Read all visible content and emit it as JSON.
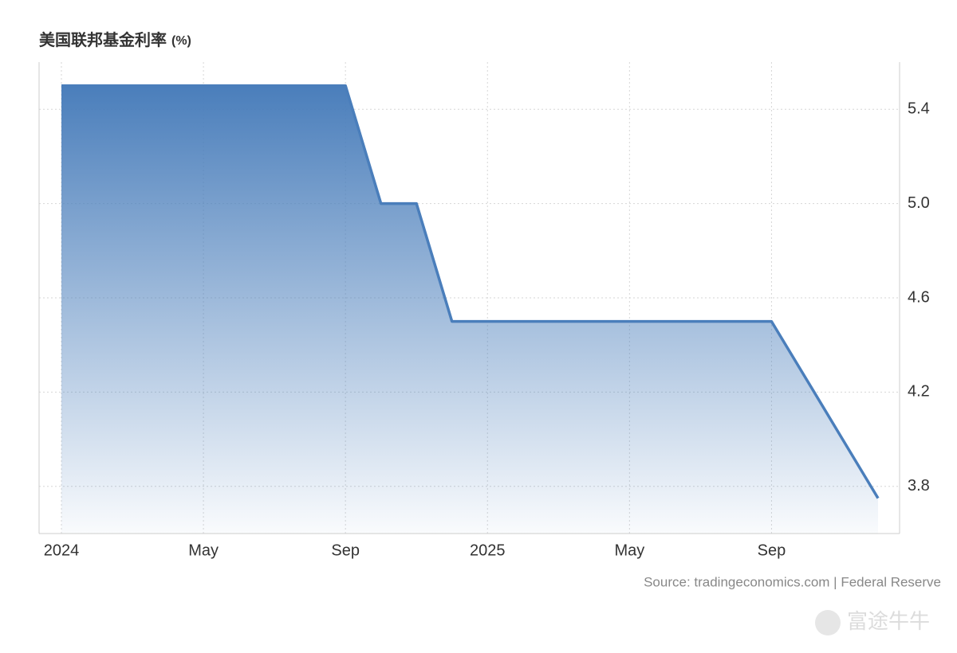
{
  "chart_data": {
    "type": "area",
    "title": "美国联邦基金利率",
    "title_unit": "(%)",
    "source": "Source: tradingeconomics.com | Federal Reserve",
    "watermark": "富途牛牛",
    "x": [
      "2024-01",
      "2024-02",
      "2024-03",
      "2024-04",
      "2024-05",
      "2024-06",
      "2024-07",
      "2024-08",
      "2024-09",
      "2024-10",
      "2024-11",
      "2024-12",
      "2025-01",
      "2025-02",
      "2025-03",
      "2025-04",
      "2025-05",
      "2025-06",
      "2025-07",
      "2025-08",
      "2025-09",
      "2025-10",
      "2025-11",
      "2025-12"
    ],
    "series": [
      {
        "color": "#4a7ebb",
        "values": [
          5.5,
          5.5,
          5.5,
          5.5,
          5.5,
          5.5,
          5.5,
          5.5,
          5.5,
          5.0,
          5.0,
          4.5,
          4.5,
          4.5,
          4.5,
          4.5,
          4.5,
          4.5,
          4.5,
          4.5,
          4.5,
          4.25,
          4.0,
          3.75
        ]
      }
    ],
    "xlim": [
      "2024-01",
      "2025-12"
    ],
    "xticks": [
      {
        "value": "2024-01",
        "label": "2024"
      },
      {
        "value": "2024-05",
        "label": "May"
      },
      {
        "value": "2024-09",
        "label": "Sep"
      },
      {
        "value": "2025-01",
        "label": "2025"
      },
      {
        "value": "2025-05",
        "label": "May"
      },
      {
        "value": "2025-09",
        "label": "Sep"
      }
    ],
    "ylim": [
      3.6,
      5.6
    ],
    "yticks": [
      {
        "value": 3.8,
        "label": "3.8"
      },
      {
        "value": 4.2,
        "label": "4.2"
      },
      {
        "value": 4.6,
        "label": "4.6"
      },
      {
        "value": 5,
        "label": "5.0"
      },
      {
        "value": 5.4,
        "label": "5.4"
      }
    ],
    "grid": true
  }
}
